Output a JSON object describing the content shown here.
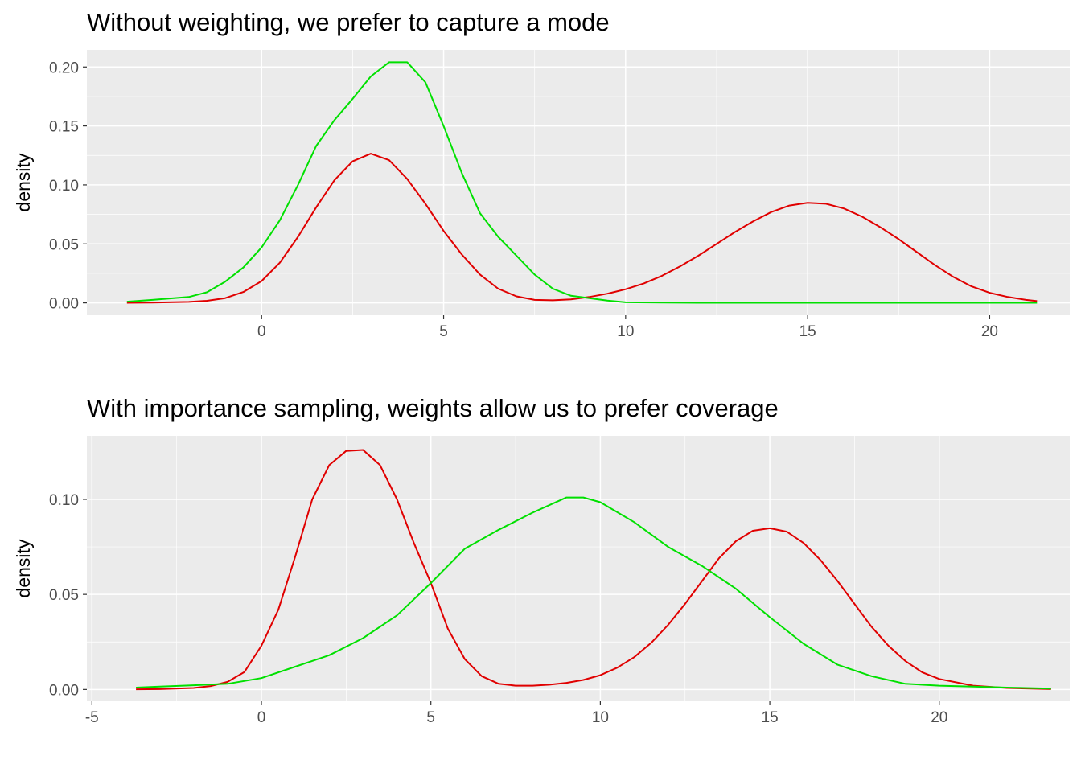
{
  "chart_data": [
    {
      "type": "line",
      "title": "Without weighting, we prefer to capture a mode",
      "xlabel": "",
      "ylabel": "density",
      "xlim": [
        -4.8,
        22.2
      ],
      "ylim": [
        -0.0105,
        0.2145
      ],
      "x_ticks": [
        0,
        5,
        10,
        15,
        20
      ],
      "y_ticks": [
        0.0,
        0.05,
        0.1,
        0.15,
        0.2
      ],
      "y_tick_labels": [
        "0.00",
        "0.05",
        "0.10",
        "0.15",
        "0.20"
      ],
      "grid": true,
      "legend": "none",
      "series": [
        {
          "color": "#e00000",
          "x": [
            -3.7,
            -3,
            -2,
            -1.5,
            -1,
            -0.5,
            0,
            0.5,
            1,
            1.5,
            2,
            2.5,
            3,
            3.5,
            4,
            4.5,
            5,
            5.5,
            6,
            6.5,
            7,
            7.5,
            8,
            8.5,
            9,
            9.5,
            10,
            10.5,
            11,
            11.5,
            12,
            12.5,
            13,
            13.5,
            14,
            14.5,
            15,
            15.5,
            16,
            16.5,
            17,
            17.5,
            18,
            18.5,
            19,
            19.5,
            20,
            20.5,
            21,
            21.3
          ],
          "y": [
            0.0001,
            0.0002,
            0.0008,
            0.0018,
            0.004,
            0.0092,
            0.0185,
            0.034,
            0.056,
            0.081,
            0.104,
            0.12,
            0.1265,
            0.121,
            0.105,
            0.084,
            0.061,
            0.041,
            0.024,
            0.012,
            0.0055,
            0.0025,
            0.0022,
            0.003,
            0.005,
            0.0078,
            0.0115,
            0.0165,
            0.023,
            0.031,
            0.04,
            0.05,
            0.06,
            0.069,
            0.077,
            0.0825,
            0.0848,
            0.084,
            0.08,
            0.073,
            0.064,
            0.054,
            0.043,
            0.032,
            0.022,
            0.014,
            0.0085,
            0.005,
            0.0025,
            0.0015
          ]
        },
        {
          "color": "#00e000",
          "x": [
            -3.7,
            -3,
            -2,
            -1.5,
            -1,
            -0.5,
            0,
            0.5,
            1,
            1.5,
            2,
            2.5,
            3,
            3.5,
            4,
            4.5,
            5,
            5.5,
            6,
            6.5,
            7,
            7.5,
            8,
            8.5,
            9,
            9.5,
            10,
            11,
            12,
            14,
            16,
            18,
            20,
            21.3
          ],
          "y": [
            0.001,
            0.0025,
            0.005,
            0.009,
            0.018,
            0.03,
            0.047,
            0.07,
            0.1,
            0.133,
            0.155,
            0.173,
            0.192,
            0.204,
            0.204,
            0.187,
            0.15,
            0.11,
            0.076,
            0.056,
            0.04,
            0.024,
            0.012,
            0.006,
            0.004,
            0.002,
            0.0005,
            0.0002,
            0.0001,
            0.0001,
            0.0001,
            0.0001,
            0.0001,
            0.0001
          ]
        }
      ]
    },
    {
      "type": "line",
      "title": "With importance sampling, weights allow us to prefer coverage",
      "xlabel": "",
      "ylabel": "density",
      "xlim": [
        -5.15,
        23.85
      ],
      "ylim": [
        -0.0062,
        0.1334
      ],
      "x_ticks": [
        -5,
        0,
        5,
        10,
        15,
        20
      ],
      "y_ticks": [
        0.0,
        0.05,
        0.1
      ],
      "y_tick_labels": [
        "0.00",
        "0.05",
        "0.10"
      ],
      "grid": true,
      "legend": "none",
      "series": [
        {
          "color": "#e00000",
          "x": [
            -3.7,
            -3,
            -2,
            -1.5,
            -1,
            -0.5,
            0,
            0.5,
            1,
            1.5,
            2,
            2.5,
            3,
            3.5,
            4,
            4.5,
            5,
            5.5,
            6,
            6.5,
            7,
            7.5,
            8,
            8.5,
            9,
            9.5,
            10,
            10.5,
            11,
            11.5,
            12,
            12.5,
            13,
            13.5,
            14,
            14.5,
            15,
            15.5,
            16,
            16.5,
            17,
            17.5,
            18,
            18.5,
            19,
            19.5,
            20,
            21,
            22,
            23.3
          ],
          "y": [
            0.0001,
            0.0002,
            0.0008,
            0.0018,
            0.004,
            0.0092,
            0.023,
            0.042,
            0.07,
            0.1,
            0.118,
            0.1255,
            0.126,
            0.118,
            0.1,
            0.077,
            0.056,
            0.032,
            0.016,
            0.007,
            0.003,
            0.002,
            0.002,
            0.0025,
            0.0035,
            0.005,
            0.0075,
            0.0115,
            0.017,
            0.0245,
            0.034,
            0.045,
            0.057,
            0.069,
            0.078,
            0.0835,
            0.0848,
            0.083,
            0.077,
            0.068,
            0.057,
            0.045,
            0.033,
            0.023,
            0.015,
            0.009,
            0.0055,
            0.002,
            0.0008,
            0.0002
          ]
        },
        {
          "color": "#00e000",
          "x": [
            -3.7,
            -3,
            -2,
            -1,
            0,
            1,
            2,
            3,
            4,
            5,
            5.5,
            6,
            7,
            8,
            9,
            9.5,
            10,
            11,
            12,
            13,
            14,
            15,
            16,
            17,
            18,
            19,
            20,
            21,
            22,
            23.3
          ],
          "y": [
            0.001,
            0.0015,
            0.0022,
            0.003,
            0.006,
            0.012,
            0.018,
            0.027,
            0.039,
            0.056,
            0.065,
            0.074,
            0.084,
            0.093,
            0.101,
            0.101,
            0.0985,
            0.088,
            0.075,
            0.065,
            0.053,
            0.038,
            0.024,
            0.013,
            0.007,
            0.003,
            0.002,
            0.0015,
            0.001,
            0.0005
          ]
        }
      ]
    }
  ]
}
